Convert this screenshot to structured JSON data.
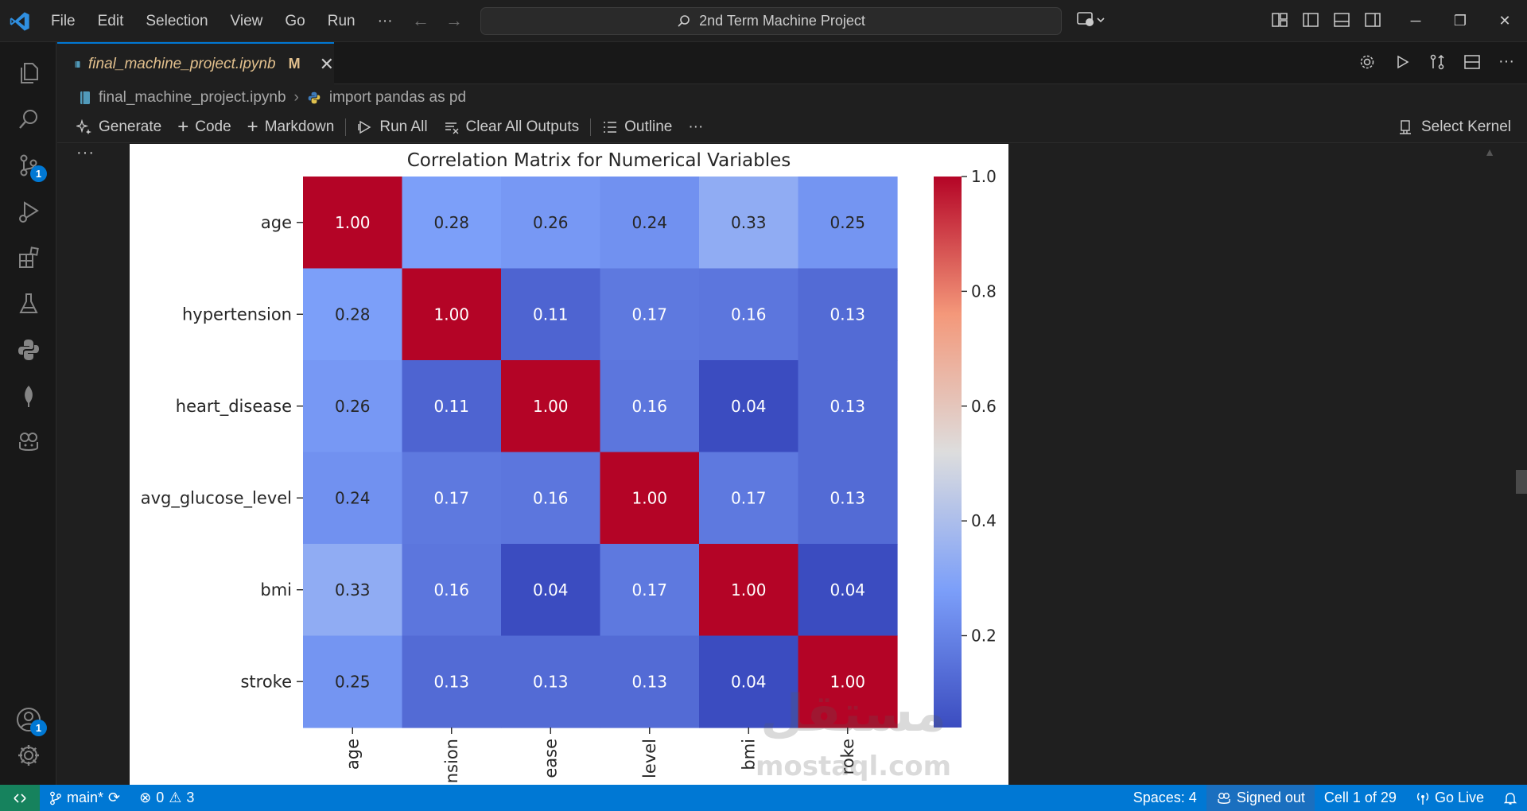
{
  "app": {
    "menu": [
      "File",
      "Edit",
      "Selection",
      "View",
      "Go",
      "Run",
      "···"
    ],
    "search_text": "2nd Term Machine Project"
  },
  "activity_bar": {
    "scm_badge": "1",
    "accounts_badge": "1"
  },
  "tab": {
    "filename": "final_machine_project.ipynb",
    "status": "M"
  },
  "breadcrumb": {
    "file": "final_machine_project.ipynb",
    "symbol": "import pandas as pd"
  },
  "toolbar": {
    "generate": "Generate",
    "code": "Code",
    "markdown": "Markdown",
    "run_all": "Run All",
    "clear_outputs": "Clear All Outputs",
    "outline": "Outline",
    "more": "···",
    "select_kernel": "Select Kernel"
  },
  "cell": {
    "dots": "···"
  },
  "watermark": {
    "arabic": "مستقل",
    "latin": "mostaql.com"
  },
  "chart_data": {
    "type": "heatmap",
    "title": "Correlation Matrix for Numerical Variables",
    "rows": [
      "age",
      "hypertension",
      "heart_disease",
      "avg_glucose_level",
      "bmi",
      "stroke"
    ],
    "columns": [
      "age",
      "hypertension",
      "heart_disease",
      "avg_glucose_level",
      "bmi",
      "stroke"
    ],
    "x_tick_labels_visible": [
      "age",
      "nsion",
      "ease",
      "level",
      "bmi",
      "roke"
    ],
    "values": [
      [
        1.0,
        0.28,
        0.26,
        0.24,
        0.33,
        0.25
      ],
      [
        0.28,
        1.0,
        0.11,
        0.17,
        0.16,
        0.13
      ],
      [
        0.26,
        0.11,
        1.0,
        0.16,
        0.04,
        0.13
      ],
      [
        0.24,
        0.17,
        0.16,
        1.0,
        0.17,
        0.13
      ],
      [
        0.33,
        0.16,
        0.04,
        0.17,
        1.0,
        0.04
      ],
      [
        0.25,
        0.13,
        0.13,
        0.13,
        0.04,
        1.0
      ]
    ],
    "colorbar": {
      "colormap": "coolwarm",
      "range": [
        0.04,
        1.0
      ],
      "ticks": [
        "1.0",
        "0.8",
        "0.6",
        "0.4",
        "0.2"
      ],
      "tick_values": [
        1.0,
        0.8,
        0.6,
        0.4,
        0.2
      ]
    }
  },
  "statusbar": {
    "branch": "main*",
    "errors": "0",
    "warnings": "3",
    "spaces": "Spaces: 4",
    "signed_out": "Signed out",
    "cell_position": "Cell 1 of 29",
    "go_live": "Go Live"
  }
}
